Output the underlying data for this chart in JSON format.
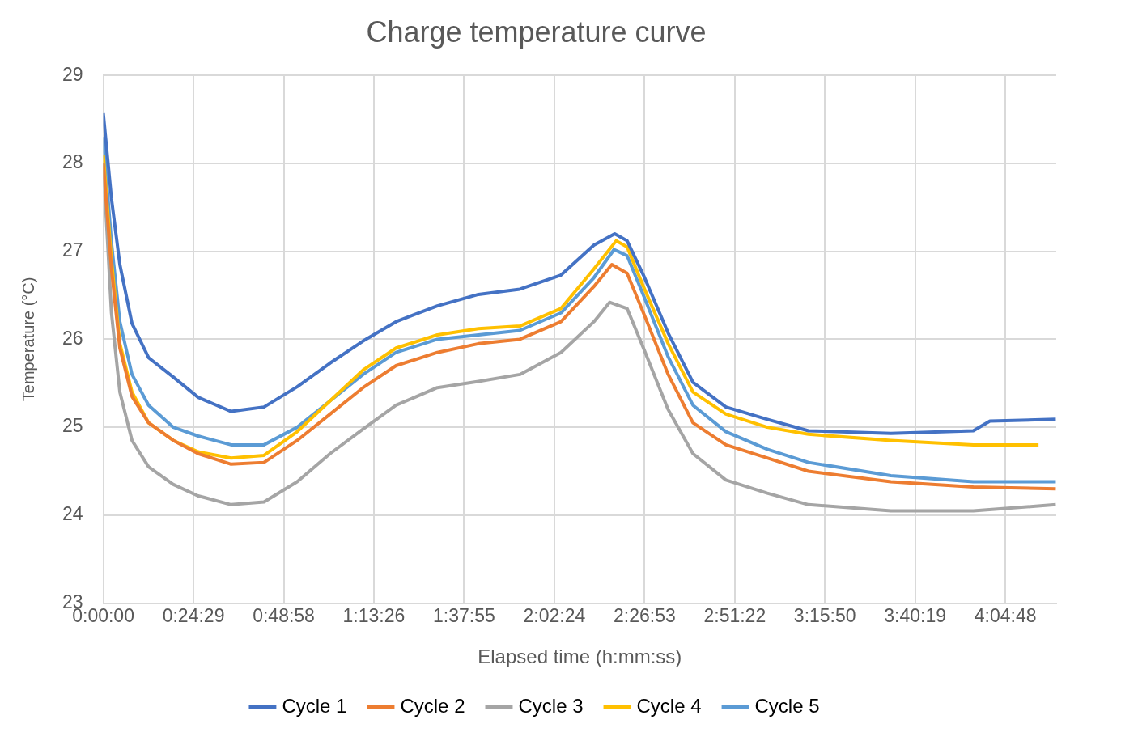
{
  "chart_data": {
    "type": "line",
    "title": "Charge temperature curve",
    "xlabel": "Elapsed time (h:mm:ss)",
    "ylabel": "Temperature (°C)",
    "xlim": [
      0,
      4.31
    ],
    "ylim": [
      23,
      29
    ],
    "yticks": [
      23,
      24,
      25,
      26,
      27,
      28,
      29
    ],
    "xticks": [
      {
        "value": 0,
        "label": "0:00:00"
      },
      {
        "value": 0.408056,
        "label": "0:24:29"
      },
      {
        "value": 0.816111,
        "label": "0:48:58"
      },
      {
        "value": 1.223889,
        "label": "1:13:26"
      },
      {
        "value": 1.631944,
        "label": "1:37:55"
      },
      {
        "value": 2.04,
        "label": "2:02:24"
      },
      {
        "value": 2.448056,
        "label": "2:26:53"
      },
      {
        "value": 2.856111,
        "label": "2:51:22"
      },
      {
        "value": 3.263889,
        "label": "3:15:50"
      },
      {
        "value": 3.671944,
        "label": "3:40:19"
      },
      {
        "value": 4.08,
        "label": "4:04:48"
      }
    ],
    "grid": true,
    "legend": "bottom",
    "marker": "none",
    "line_style": "solid",
    "series": [
      {
        "name": "Cycle 1",
        "color": "#4472c4",
        "x": [
          0,
          0.037,
          0.075,
          0.13,
          0.205,
          0.317,
          0.429,
          0.578,
          0.727,
          0.877,
          1.026,
          1.175,
          1.324,
          1.511,
          1.697,
          1.884,
          2.07,
          2.219,
          2.313,
          2.369,
          2.443,
          2.555,
          2.667,
          2.816,
          3.003,
          3.189,
          3.562,
          3.935,
          4.01,
          4.308
        ],
        "values": [
          28.57,
          27.6,
          26.85,
          26.18,
          25.79,
          25.57,
          25.34,
          25.18,
          25.23,
          25.46,
          25.73,
          25.98,
          26.2,
          26.38,
          26.51,
          26.57,
          26.73,
          27.07,
          27.2,
          27.12,
          26.73,
          26.07,
          25.51,
          25.23,
          25.09,
          24.96,
          24.93,
          24.96,
          25.07,
          25.09
        ]
      },
      {
        "name": "Cycle 2",
        "color": "#ed7d31",
        "x": [
          0,
          0.037,
          0.075,
          0.13,
          0.205,
          0.317,
          0.429,
          0.578,
          0.727,
          0.877,
          1.026,
          1.175,
          1.324,
          1.511,
          1.697,
          1.884,
          2.07,
          2.219,
          2.3,
          2.369,
          2.443,
          2.555,
          2.667,
          2.816,
          3.003,
          3.189,
          3.562,
          3.935,
          4.308
        ],
        "values": [
          28.0,
          26.8,
          25.9,
          25.35,
          25.05,
          24.85,
          24.7,
          24.58,
          24.6,
          24.85,
          25.15,
          25.45,
          25.7,
          25.85,
          25.95,
          26.0,
          26.2,
          26.6,
          26.85,
          26.75,
          26.3,
          25.6,
          25.05,
          24.8,
          24.65,
          24.5,
          24.38,
          24.32,
          24.3
        ]
      },
      {
        "name": "Cycle 3",
        "color": "#a5a5a5",
        "x": [
          0,
          0.037,
          0.075,
          0.13,
          0.205,
          0.317,
          0.429,
          0.578,
          0.727,
          0.877,
          1.026,
          1.175,
          1.324,
          1.511,
          1.697,
          1.884,
          2.07,
          2.219,
          2.29,
          2.369,
          2.443,
          2.555,
          2.667,
          2.816,
          3.003,
          3.189,
          3.562,
          3.935,
          4.308
        ],
        "values": [
          28.0,
          26.3,
          25.4,
          24.85,
          24.55,
          24.35,
          24.22,
          24.12,
          24.15,
          24.38,
          24.7,
          24.98,
          25.25,
          25.45,
          25.52,
          25.6,
          25.85,
          26.2,
          26.42,
          26.35,
          25.9,
          25.2,
          24.7,
          24.4,
          24.25,
          24.12,
          24.05,
          24.05,
          24.12
        ]
      },
      {
        "name": "Cycle 4",
        "color": "#ffc000",
        "x": [
          0,
          0.037,
          0.075,
          0.13,
          0.205,
          0.317,
          0.429,
          0.578,
          0.727,
          0.877,
          1.026,
          1.175,
          1.324,
          1.511,
          1.697,
          1.884,
          2.07,
          2.219,
          2.32,
          2.369,
          2.443,
          2.555,
          2.667,
          2.816,
          3.003,
          3.189,
          3.562,
          3.935,
          4.23
        ],
        "values": [
          28.1,
          26.9,
          25.95,
          25.4,
          25.05,
          24.85,
          24.72,
          24.65,
          24.68,
          24.95,
          25.3,
          25.65,
          25.9,
          26.05,
          26.12,
          26.15,
          26.35,
          26.8,
          27.12,
          27.05,
          26.6,
          25.95,
          25.4,
          25.15,
          25.0,
          24.92,
          24.85,
          24.8,
          24.8
        ]
      },
      {
        "name": "Cycle 5",
        "color": "#5b9bd5",
        "x": [
          0,
          0.037,
          0.075,
          0.13,
          0.205,
          0.317,
          0.429,
          0.578,
          0.727,
          0.877,
          1.026,
          1.175,
          1.324,
          1.511,
          1.697,
          1.884,
          2.07,
          2.219,
          2.31,
          2.369,
          2.443,
          2.555,
          2.667,
          2.816,
          3.003,
          3.189,
          3.562,
          3.935,
          4.308
        ],
        "values": [
          28.3,
          27.1,
          26.2,
          25.6,
          25.25,
          25.0,
          24.9,
          24.8,
          24.8,
          25.0,
          25.3,
          25.6,
          25.85,
          26.0,
          26.05,
          26.1,
          26.3,
          26.7,
          27.02,
          26.95,
          26.5,
          25.8,
          25.25,
          24.95,
          24.75,
          24.6,
          24.45,
          24.38,
          24.38
        ]
      }
    ]
  }
}
